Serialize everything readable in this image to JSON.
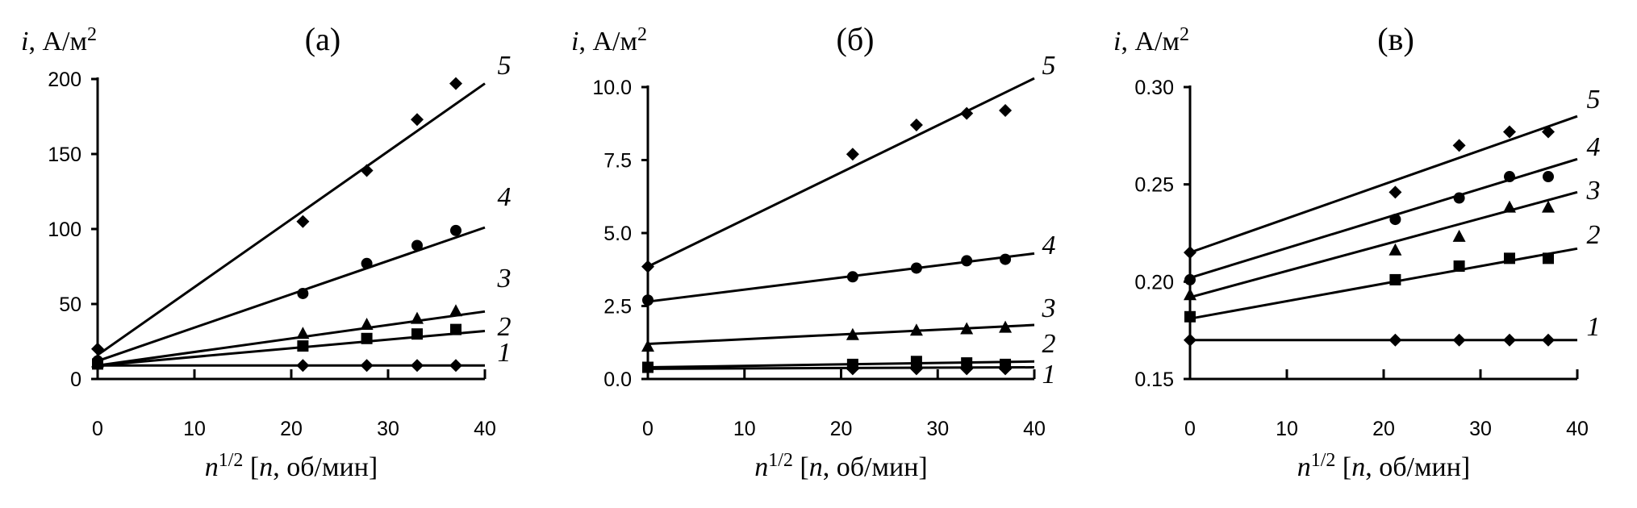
{
  "chart_data": [
    {
      "type": "scatter",
      "title": "(а)",
      "ylabel": {
        "var": "i",
        "unit": ", А/м",
        "exp": "2"
      },
      "xlabel": {
        "var": "n",
        "exp": "1/2",
        "rest": " [",
        "var2": "n",
        "unit": ", об/мин]"
      },
      "xlim": [
        0,
        40
      ],
      "ylim": [
        0,
        200
      ],
      "x_ticks": [
        "0",
        "10",
        "20",
        "30",
        "40"
      ],
      "y_ticks": [
        "0",
        "50",
        "100",
        "150",
        "200"
      ],
      "series": [
        {
          "name": "1",
          "marker": "diamond",
          "x": [
            21.2,
            27.8,
            33,
            37
          ],
          "y": [
            9,
            9,
            9,
            9
          ],
          "fit": [
            [
              0,
              9
            ],
            [
              40,
              9
            ]
          ]
        },
        {
          "name": "2",
          "marker": "square",
          "x": [
            0,
            21.2,
            27.8,
            33,
            37
          ],
          "y": [
            10,
            22,
            27,
            30,
            33
          ],
          "fit": [
            [
              0,
              9
            ],
            [
              40,
              32
            ]
          ]
        },
        {
          "name": "3",
          "marker": "triangle",
          "x": [
            0,
            21.2,
            27.8,
            33,
            37
          ],
          "y": [
            11,
            30,
            36,
            40,
            45
          ],
          "fit": [
            [
              0,
              9
            ],
            [
              40,
              45
            ]
          ]
        },
        {
          "name": "4",
          "marker": "circle",
          "x": [
            0,
            21.2,
            27.8,
            33,
            37
          ],
          "y": [
            12,
            57,
            77,
            89,
            99
          ],
          "fit": [
            [
              0,
              12
            ],
            [
              40,
              101
            ]
          ]
        },
        {
          "name": "5",
          "marker": "diamond",
          "x": [
            0,
            21.2,
            27.8,
            33,
            37
          ],
          "y": [
            20,
            105,
            139,
            173,
            197
          ],
          "fit": [
            [
              0,
              16
            ],
            [
              40,
              197
            ]
          ]
        }
      ]
    },
    {
      "type": "scatter",
      "title": "(б)",
      "ylabel": {
        "var": "i",
        "unit": ", А/м",
        "exp": "2"
      },
      "xlabel": {
        "var": "n",
        "exp": "1/2",
        "rest": " [",
        "var2": "n",
        "unit": ", об/мин]"
      },
      "xlim": [
        0,
        40
      ],
      "ylim": [
        0,
        10
      ],
      "x_ticks": [
        "0",
        "10",
        "20",
        "30",
        "40"
      ],
      "y_ticks": [
        "0.0",
        "2.5",
        "5.0",
        "7.5",
        "10.0"
      ],
      "series": [
        {
          "name": "1",
          "marker": "diamond",
          "x": [
            21.2,
            27.8,
            33,
            37
          ],
          "y": [
            0.35,
            0.35,
            0.35,
            0.35
          ],
          "fit": [
            [
              0,
              0.35
            ],
            [
              40,
              0.4
            ]
          ]
        },
        {
          "name": "2",
          "marker": "square",
          "x": [
            0,
            21.2,
            27.8,
            33,
            37
          ],
          "y": [
            0.4,
            0.5,
            0.6,
            0.55,
            0.5
          ],
          "fit": [
            [
              0,
              0.4
            ],
            [
              40,
              0.6
            ]
          ]
        },
        {
          "name": "3",
          "marker": "triangle",
          "x": [
            0,
            21.2,
            27.8,
            33,
            37
          ],
          "y": [
            1.1,
            1.5,
            1.65,
            1.7,
            1.75
          ],
          "fit": [
            [
              0,
              1.2
            ],
            [
              40,
              1.85
            ]
          ]
        },
        {
          "name": "4",
          "marker": "circle",
          "x": [
            0,
            21.2,
            27.8,
            33,
            37
          ],
          "y": [
            2.7,
            3.5,
            3.8,
            4.05,
            4.1
          ],
          "fit": [
            [
              0,
              2.65
            ],
            [
              40,
              4.3
            ]
          ]
        },
        {
          "name": "5",
          "marker": "diamond",
          "x": [
            0,
            21.2,
            27.8,
            33,
            37
          ],
          "y": [
            3.85,
            7.7,
            8.7,
            9.1,
            9.2
          ],
          "fit": [
            [
              0,
              3.85
            ],
            [
              40,
              10.3
            ]
          ]
        }
      ]
    },
    {
      "type": "scatter",
      "title": "(в)",
      "ylabel": {
        "var": "i",
        "unit": ", А/м",
        "exp": "2"
      },
      "xlabel": {
        "var": "n",
        "exp": "1/2",
        "rest": " [",
        "var2": "n",
        "unit": ", об/мин]"
      },
      "xlim": [
        0,
        40
      ],
      "ylim": [
        0.15,
        0.3
      ],
      "x_ticks": [
        "0",
        "10",
        "20",
        "30",
        "40"
      ],
      "y_ticks": [
        "0.15",
        "0.20",
        "0.25",
        "0.30"
      ],
      "series": [
        {
          "name": "1",
          "marker": "diamond",
          "x": [
            0,
            21.2,
            27.8,
            33,
            37
          ],
          "y": [
            0.17,
            0.17,
            0.17,
            0.17,
            0.17
          ],
          "fit": [
            [
              0,
              0.17
            ],
            [
              40,
              0.17
            ]
          ]
        },
        {
          "name": "2",
          "marker": "square",
          "x": [
            0,
            21.2,
            27.8,
            33,
            37
          ],
          "y": [
            0.182,
            0.201,
            0.208,
            0.212,
            0.212
          ],
          "fit": [
            [
              0,
              0.181
            ],
            [
              40,
              0.217
            ]
          ]
        },
        {
          "name": "3",
          "marker": "triangle",
          "x": [
            0,
            21.2,
            27.8,
            33,
            37
          ],
          "y": [
            0.193,
            0.216,
            0.223,
            0.238,
            0.238
          ],
          "fit": [
            [
              0,
              0.192
            ],
            [
              40,
              0.246
            ]
          ]
        },
        {
          "name": "4",
          "marker": "circle",
          "x": [
            0,
            21.2,
            27.8,
            33,
            37
          ],
          "y": [
            0.201,
            0.232,
            0.243,
            0.254,
            0.254
          ],
          "fit": [
            [
              0,
              0.202
            ],
            [
              40,
              0.263
            ]
          ]
        },
        {
          "name": "5",
          "marker": "diamond",
          "x": [
            0,
            21.2,
            27.8,
            33,
            37
          ],
          "y": [
            0.215,
            0.246,
            0.27,
            0.277,
            0.277
          ],
          "fit": [
            [
              0,
              0.215
            ],
            [
              40,
              0.285
            ]
          ]
        }
      ]
    }
  ]
}
